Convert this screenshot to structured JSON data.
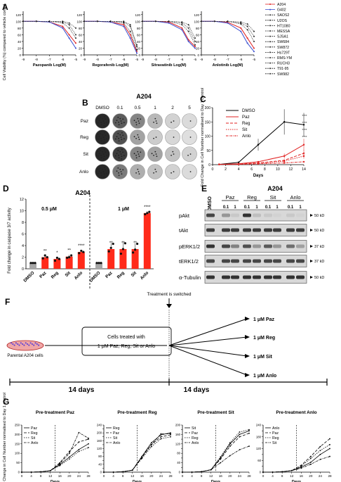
{
  "panels": {
    "A": {
      "letter": "A",
      "ylabel": "Cell Viability (%) compared to vehicle control",
      "charts": [
        {
          "xlabel": "Pazopanib Log(M)"
        },
        {
          "xlabel": "Regorafenib Log(M)"
        },
        {
          "xlabel": "Sitravatinib Log(M)"
        },
        {
          "xlabel": "Anlotinib Log(M)"
        }
      ],
      "xticks": [
        "-9",
        "-8",
        "-7",
        "-6",
        "-5"
      ],
      "yticks": [
        "0",
        "20",
        "40",
        "60",
        "80",
        "100",
        "120"
      ],
      "legend": [
        "A204",
        "G402",
        "SAOS2",
        "U2OS",
        "HT1080",
        "MESSA",
        "SJSA1",
        "SW684",
        "SW872",
        "Hs729T",
        "RMS-YM",
        "RUCH3",
        "T91-95",
        "SW982"
      ],
      "colors": {
        "A204": "#e02020",
        "G402": "#3a4fd0",
        "other": "#222222"
      }
    },
    "B": {
      "letter": "B",
      "title": "A204",
      "cols": [
        "DMSO",
        "0.1",
        "0.5",
        "1",
        "2",
        "5"
      ],
      "rows": [
        "Paz",
        "Reg",
        "Sit",
        "Anlo"
      ]
    },
    "C": {
      "letter": "C",
      "ylabel": "Fold Change in Cell Number normalised to Day 1 control",
      "xlabel": "Days",
      "xticks": [
        "0",
        "2",
        "4",
        "6",
        "8",
        "10",
        "12",
        "14"
      ],
      "yticks": [
        "0",
        "50",
        "100",
        "150",
        "200"
      ],
      "legend": [
        "DMSO",
        "Paz",
        "Reg",
        "Sit",
        "Anlo"
      ],
      "stars": [
        "****",
        "****",
        "****",
        "****"
      ]
    },
    "D": {
      "letter": "D",
      "title": "A204",
      "ylabel": "Fold change in caspase 3/7 activity",
      "conc_left": "0.5 μM",
      "conc_right": "1 μM",
      "yticks": [
        "0",
        "2",
        "4",
        "6",
        "8",
        "10",
        "12"
      ],
      "categories": [
        "DMSO",
        "Paz",
        "Reg",
        "Sit",
        "Anlo",
        "DMSO",
        "Paz",
        "Reg",
        "Sit",
        "Anlo"
      ],
      "stars": [
        "",
        "**",
        "*",
        "**",
        "****",
        "",
        "**",
        "**",
        "**",
        "****"
      ]
    },
    "E": {
      "letter": "E",
      "title": "A204",
      "lanes_header": [
        "DMSO",
        "Paz",
        "Reg",
        "Sit",
        "Anlo"
      ],
      "doses": [
        "0.1",
        "1",
        "0.1",
        "1",
        "0.1",
        "1",
        "0.1",
        "1"
      ],
      "proteins": [
        "pAkt",
        "tAkt",
        "pERK1/2",
        "tERK1/2",
        "α-Tubulin"
      ],
      "sizes": [
        "50 kD",
        "50 kD",
        "37 kD",
        "37 kD",
        "50 kD"
      ]
    },
    "F": {
      "letter": "F",
      "switch_label": "Treatment is switched",
      "dish_label": "Parental A204 cells",
      "box_text_1": "Cells treated with",
      "box_text_2": "1 μM Paz, Reg, Sit or Anlo",
      "period_left": "14 days",
      "period_right": "14 days",
      "targets": [
        "1 μM Paz",
        "1 μM Reg",
        "1 μM Sit",
        "1 μM Anlo"
      ]
    },
    "G": {
      "letter": "G",
      "ylabel": "Fold Change in Cell Number normalised to Day 1 control",
      "xlabel": "Days",
      "xticks": [
        "0",
        "4",
        "8",
        "12",
        "16",
        "20",
        "24",
        "28"
      ],
      "charts": [
        {
          "title": "Pre-treatment Paz",
          "legend": [
            "Paz",
            "Reg",
            "Sit",
            "Anlo"
          ],
          "yticks": [
            "0",
            "50",
            "100",
            "150",
            "200",
            "250"
          ]
        },
        {
          "title": "Pre-treatment Reg",
          "legend": [
            "Reg",
            "Paz",
            "Sit",
            "Anlo"
          ],
          "yticks": [
            "0",
            "20",
            "40",
            "60",
            "80",
            "100",
            "120",
            "140",
            "160",
            "180",
            "200",
            "220",
            "240"
          ]
        },
        {
          "title": "Pre-treatment Sit",
          "legend": [
            "Sit",
            "Paz",
            "Reg",
            "Anlo"
          ],
          "yticks": [
            "0",
            "20",
            "40",
            "60",
            "80",
            "100",
            "120",
            "140",
            "160",
            "180",
            "200"
          ]
        },
        {
          "title": "Pre-treatment Anlo",
          "legend": [
            "Anlo",
            "Paz",
            "Reg",
            "Sit"
          ],
          "yticks": [
            "0",
            "30",
            "60",
            "90",
            "120",
            "150",
            "180",
            "210",
            "240"
          ]
        }
      ]
    }
  },
  "chart_data": [
    {
      "type": "line",
      "panel": "A",
      "ylabel": "Cell Viability (%) compared to vehicle control",
      "x": [
        -9,
        -8,
        -7,
        -6,
        -5.5,
        -5
      ],
      "ylim": [
        0,
        130
      ],
      "charts": [
        {
          "xlabel": "Pazopanib Log(M)",
          "series": [
            {
              "name": "A204",
              "values": [
                100,
                100,
                98,
                85,
                60,
                35
              ]
            },
            {
              "name": "G402",
              "values": [
                100,
                100,
                98,
                80,
                50,
                20
              ]
            },
            {
              "name": "SAOS2",
              "values": [
                100,
                100,
                100,
                98,
                90,
                60
              ]
            },
            {
              "name": "HT1080",
              "values": [
                100,
                100,
                100,
                100,
                95,
                80
              ]
            },
            {
              "name": "SW982",
              "values": [
                100,
                100,
                100,
                95,
                80,
                50
              ]
            }
          ]
        },
        {
          "xlabel": "Regorafenib Log(M)",
          "series": [
            {
              "name": "A204",
              "values": [
                100,
                100,
                98,
                90,
                60,
                10
              ]
            },
            {
              "name": "G402",
              "values": [
                100,
                100,
                98,
                85,
                50,
                5
              ]
            },
            {
              "name": "SAOS2",
              "values": [
                100,
                100,
                100,
                100,
                90,
                30
              ]
            },
            {
              "name": "HT1080",
              "values": [
                100,
                100,
                100,
                98,
                85,
                25
              ]
            },
            {
              "name": "SW982",
              "values": [
                100,
                100,
                100,
                95,
                70,
                15
              ]
            }
          ]
        },
        {
          "xlabel": "Sitravatinib Log(M)",
          "series": [
            {
              "name": "A204",
              "values": [
                100,
                100,
                98,
                80,
                45,
                25
              ]
            },
            {
              "name": "G402",
              "values": [
                100,
                100,
                95,
                75,
                40,
                20
              ]
            },
            {
              "name": "SAOS2",
              "values": [
                100,
                100,
                100,
                98,
                90,
                50
              ]
            },
            {
              "name": "HT1080",
              "values": [
                100,
                100,
                100,
                95,
                80,
                40
              ]
            },
            {
              "name": "SW982",
              "values": [
                100,
                100,
                100,
                90,
                70,
                30
              ]
            }
          ]
        },
        {
          "xlabel": "Anlotinib Log(M)",
          "series": [
            {
              "name": "A204",
              "values": [
                100,
                100,
                97,
                80,
                50,
                20
              ]
            },
            {
              "name": "G402",
              "values": [
                100,
                100,
                95,
                70,
                35,
                10
              ]
            },
            {
              "name": "SAOS2",
              "values": [
                100,
                100,
                100,
                98,
                92,
                70
              ]
            },
            {
              "name": "HT1080",
              "values": [
                100,
                100,
                100,
                95,
                85,
                55
              ]
            },
            {
              "name": "SW982",
              "values": [
                100,
                100,
                100,
                92,
                75,
                40
              ]
            }
          ]
        }
      ]
    },
    {
      "type": "line",
      "panel": "C",
      "xlabel": "Days",
      "ylabel": "Fold Change in Cell Number normalised to Day 1 control",
      "x": [
        1,
        4,
        7,
        11,
        14
      ],
      "ylim": [
        0,
        200
      ],
      "series": [
        {
          "name": "DMSO",
          "values": [
            1,
            8,
            70,
            150,
            140
          ]
        },
        {
          "name": "Paz",
          "values": [
            1,
            3,
            10,
            30,
            70
          ]
        },
        {
          "name": "Reg",
          "values": [
            1,
            2,
            6,
            15,
            40
          ]
        },
        {
          "name": "Sit",
          "values": [
            1,
            2,
            5,
            12,
            30
          ]
        },
        {
          "name": "Anlo",
          "values": [
            1,
            1,
            3,
            6,
            10
          ]
        }
      ]
    },
    {
      "type": "bar",
      "panel": "D",
      "title": "A204",
      "ylabel": "Fold change in caspase 3/7 activity",
      "ylim": [
        0,
        12
      ],
      "groups": [
        {
          "label": "0.5 μM",
          "categories": [
            "DMSO",
            "Paz",
            "Reg",
            "Sit",
            "Anlo"
          ],
          "values": [
            1.0,
            2.0,
            1.7,
            2.1,
            2.9
          ],
          "points": [
            [
              1,
              1,
              1
            ],
            [
              1.8,
              2.3,
              2.0
            ],
            [
              1.4,
              1.9,
              1.7
            ],
            [
              1.9,
              2.0,
              2.3
            ],
            [
              2.7,
              3.1,
              2.9
            ]
          ]
        },
        {
          "label": "1 μM",
          "categories": [
            "DMSO",
            "Paz",
            "Reg",
            "Sit",
            "Anlo"
          ],
          "values": [
            1.0,
            3.4,
            3.4,
            3.4,
            9.6
          ],
          "points": [
            [
              1,
              1,
              1
            ],
            [
              3.0,
              3.6,
              4.3
            ],
            [
              2.6,
              3.4,
              4.4
            ],
            [
              2.8,
              3.3,
              4.3
            ],
            [
              9.4,
              9.6,
              9.8
            ]
          ]
        }
      ]
    },
    {
      "type": "line",
      "panel": "G",
      "xlabel": "Days",
      "ylabel": "Fold Change in Cell Number normalised to Day 1 control",
      "x": [
        0,
        4,
        8,
        12,
        16,
        20,
        24,
        28
      ],
      "charts": [
        {
          "title": "Pre-treatment Paz",
          "ylim": [
            0,
            250
          ],
          "series": [
            {
              "name": "Paz",
              "values": [
                0,
                0,
                2,
                8,
                40,
                80,
                120,
                150
              ]
            },
            {
              "name": "Reg",
              "values": [
                0,
                0,
                2,
                8,
                50,
                110,
                160,
                175
              ]
            },
            {
              "name": "Sit",
              "values": [
                0,
                0,
                2,
                8,
                35,
                70,
                110,
                130
              ]
            },
            {
              "name": "Anlo",
              "values": [
                0,
                0,
                2,
                8,
                45,
                100,
                210,
                180
              ]
            }
          ]
        },
        {
          "title": "Pre-treatment Reg",
          "ylim": [
            0,
            240
          ],
          "series": [
            {
              "name": "Reg",
              "values": [
                0,
                0,
                2,
                10,
                80,
                150,
                190,
                200
              ]
            },
            {
              "name": "Paz",
              "values": [
                0,
                0,
                2,
                10,
                75,
                140,
                180,
                190
              ]
            },
            {
              "name": "Sit",
              "values": [
                0,
                0,
                2,
                10,
                70,
                130,
                170,
                180
              ]
            },
            {
              "name": "Anlo",
              "values": [
                0,
                0,
                2,
                10,
                80,
                140,
                195,
                195
              ]
            }
          ]
        },
        {
          "title": "Pre-treatment Sit",
          "ylim": [
            0,
            200
          ],
          "series": [
            {
              "name": "Sit",
              "values": [
                0,
                0,
                2,
                10,
                60,
                120,
                160,
                175
              ]
            },
            {
              "name": "Paz",
              "values": [
                0,
                0,
                2,
                10,
                55,
                110,
                150,
                165
              ]
            },
            {
              "name": "Reg",
              "values": [
                0,
                0,
                2,
                10,
                65,
                125,
                170,
                180
              ]
            },
            {
              "name": "Anlo",
              "values": [
                0,
                0,
                2,
                10,
                40,
                70,
                95,
                110
              ]
            }
          ]
        },
        {
          "title": "Pre-treatment Anlo",
          "ylim": [
            0,
            240
          ],
          "series": [
            {
              "name": "Anlo",
              "values": [
                0,
                0,
                2,
                8,
                25,
                50,
                90,
                120
              ]
            },
            {
              "name": "Paz",
              "values": [
                0,
                0,
                2,
                8,
                35,
                80,
                130,
                170
              ]
            },
            {
              "name": "Reg",
              "values": [
                0,
                0,
                2,
                8,
                30,
                70,
                110,
                140
              ]
            },
            {
              "name": "Sit",
              "values": [
                0,
                0,
                2,
                8,
                20,
                40,
                65,
                80
              ]
            }
          ]
        }
      ]
    }
  ]
}
